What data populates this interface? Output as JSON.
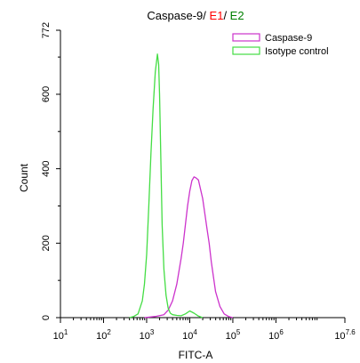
{
  "chart_data": {
    "type": "line",
    "title_parts": [
      {
        "text": "Caspase-9",
        "color": "#000000"
      },
      {
        "text": "/ ",
        "color": "#000000"
      },
      {
        "text": "E1",
        "color": "#ff0000"
      },
      {
        "text": "/ ",
        "color": "#000000"
      },
      {
        "text": "E2",
        "color": "#008000"
      }
    ],
    "xlabel": "FITC-A",
    "ylabel": "Count",
    "x_scale": "log10",
    "xlim_log10": [
      1,
      7.6
    ],
    "ylim": [
      0,
      772
    ],
    "x_ticks": [
      {
        "base": "10",
        "exp": "1",
        "log": 1
      },
      {
        "base": "10",
        "exp": "2",
        "log": 2
      },
      {
        "base": "10",
        "exp": "3",
        "log": 3
      },
      {
        "base": "10",
        "exp": "4",
        "log": 4
      },
      {
        "base": "10",
        "exp": "5",
        "log": 5
      },
      {
        "base": "10",
        "exp": "6",
        "log": 6
      },
      {
        "base": "10",
        "exp": "7.6",
        "log": 7.6
      }
    ],
    "y_ticks": [
      {
        "label": "0",
        "value": 0
      },
      {
        "label": "200",
        "value": 200
      },
      {
        "label": "400",
        "value": 400
      },
      {
        "label": "600",
        "value": 600
      },
      {
        "label": "772",
        "value": 772
      }
    ],
    "legend_position": "top-right",
    "series": [
      {
        "name": "Caspase-9",
        "color": "#cc33cc",
        "x_log10": [
          2.95,
          3.2,
          3.4,
          3.5,
          3.6,
          3.7,
          3.8,
          3.85,
          3.9,
          3.95,
          4.0,
          4.05,
          4.1,
          4.15,
          4.2,
          4.25,
          4.3,
          4.35,
          4.4,
          4.45,
          4.5,
          4.55,
          4.6,
          4.7,
          4.8,
          4.9,
          5.0
        ],
        "y": [
          0,
          3,
          8,
          20,
          45,
          90,
          160,
          200,
          250,
          300,
          340,
          368,
          378,
          375,
          370,
          345,
          320,
          280,
          240,
          200,
          150,
          110,
          70,
          30,
          10,
          3,
          0
        ]
      },
      {
        "name": "Isotype control",
        "color": "#44dd44",
        "x_log10": [
          2.6,
          2.7,
          2.8,
          2.9,
          2.95,
          3.0,
          3.05,
          3.1,
          3.15,
          3.2,
          3.25,
          3.28,
          3.3,
          3.33,
          3.36,
          3.4,
          3.45,
          3.5,
          3.55,
          3.6,
          3.7,
          3.8,
          3.9,
          4.0,
          4.1,
          4.2,
          4.3
        ],
        "y": [
          0,
          3,
          10,
          45,
          90,
          170,
          300,
          440,
          560,
          660,
          708,
          680,
          600,
          420,
          250,
          130,
          60,
          25,
          12,
          8,
          6,
          5,
          10,
          18,
          12,
          4,
          0
        ]
      }
    ]
  }
}
